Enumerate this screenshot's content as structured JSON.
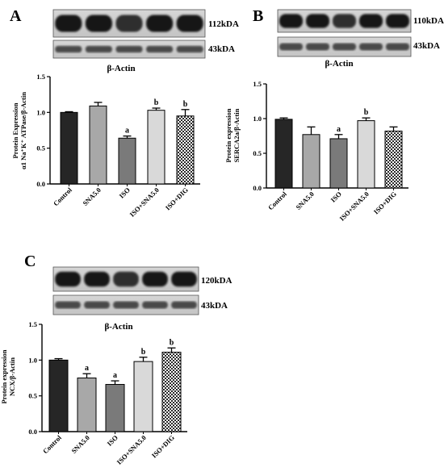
{
  "figure": {
    "panels": [
      {
        "letter": "A",
        "blots": [
          {
            "label": "112kDA"
          },
          {
            "label": "43kDA"
          }
        ],
        "actin_label": "β-Actin",
        "ylabel_lines": [
          "Protein Expression",
          "α1 Na⁺K⁺ ATPase/β-Actin"
        ]
      },
      {
        "letter": "B",
        "blots": [
          {
            "label": "110kDA"
          },
          {
            "label": "43kDA"
          }
        ],
        "actin_label": "β-Actin",
        "ylabel_lines": [
          "Protein expression",
          "SERCA2a/β-Actin"
        ]
      },
      {
        "letter": "C",
        "blots": [
          {
            "label": "120kDA"
          },
          {
            "label": "43kDA"
          }
        ],
        "actin_label": "β-Actin",
        "ylabel_lines": [
          "Protein expression",
          "NCX/β-Actin"
        ]
      }
    ]
  },
  "colors": {
    "Control": "#262626",
    "SNA5.0": "#a8a8a8",
    "ISO": "#7a7a7a",
    "ISO+SNA5.0": "#d9d9d9",
    "ISO+DIG": "checkered"
  },
  "chart_data": [
    {
      "type": "bar",
      "panel": "A",
      "categories": [
        "Control",
        "SNA5.0",
        "ISO",
        "ISO+SNA5.0",
        "ISO+DIG"
      ],
      "values": [
        1.0,
        1.09,
        0.64,
        1.03,
        0.95
      ],
      "errors": [
        0.01,
        0.05,
        0.03,
        0.03,
        0.09
      ],
      "annotations": [
        "",
        "",
        "a",
        "b",
        "b"
      ],
      "ylim": [
        0,
        1.5
      ],
      "yticks": [
        "0.0",
        "0.5",
        "1.0",
        "1.5"
      ],
      "ylabel": "Protein Expression α1 Na⁺K⁺ ATPase/β-Actin"
    },
    {
      "type": "bar",
      "panel": "B",
      "categories": [
        "Control",
        "SNA5.0",
        "ISO",
        "ISO+SNA5.0",
        "ISO+DIG"
      ],
      "values": [
        0.99,
        0.77,
        0.71,
        0.97,
        0.82
      ],
      "errors": [
        0.02,
        0.11,
        0.06,
        0.04,
        0.06
      ],
      "annotations": [
        "",
        "",
        "a",
        "b",
        ""
      ],
      "ylim": [
        0,
        1.5
      ],
      "yticks": [
        "0.0",
        "0.5",
        "1.0",
        "1.5"
      ],
      "ylabel": "Protein expression SERCA2a/β-Actin"
    },
    {
      "type": "bar",
      "panel": "C",
      "categories": [
        "Control",
        "SNA5.0",
        "ISO",
        "ISO+SNA5.0",
        "ISO+DIG"
      ],
      "values": [
        1.0,
        0.75,
        0.66,
        0.98,
        1.11
      ],
      "errors": [
        0.02,
        0.06,
        0.05,
        0.06,
        0.06
      ],
      "annotations": [
        "",
        "a",
        "a",
        "b",
        "b"
      ],
      "ylim": [
        0,
        1.5
      ],
      "yticks": [
        "0.0",
        "0.5",
        "1.0",
        "1.5"
      ],
      "ylabel": "Protein expression NCX/β-Actin"
    }
  ]
}
